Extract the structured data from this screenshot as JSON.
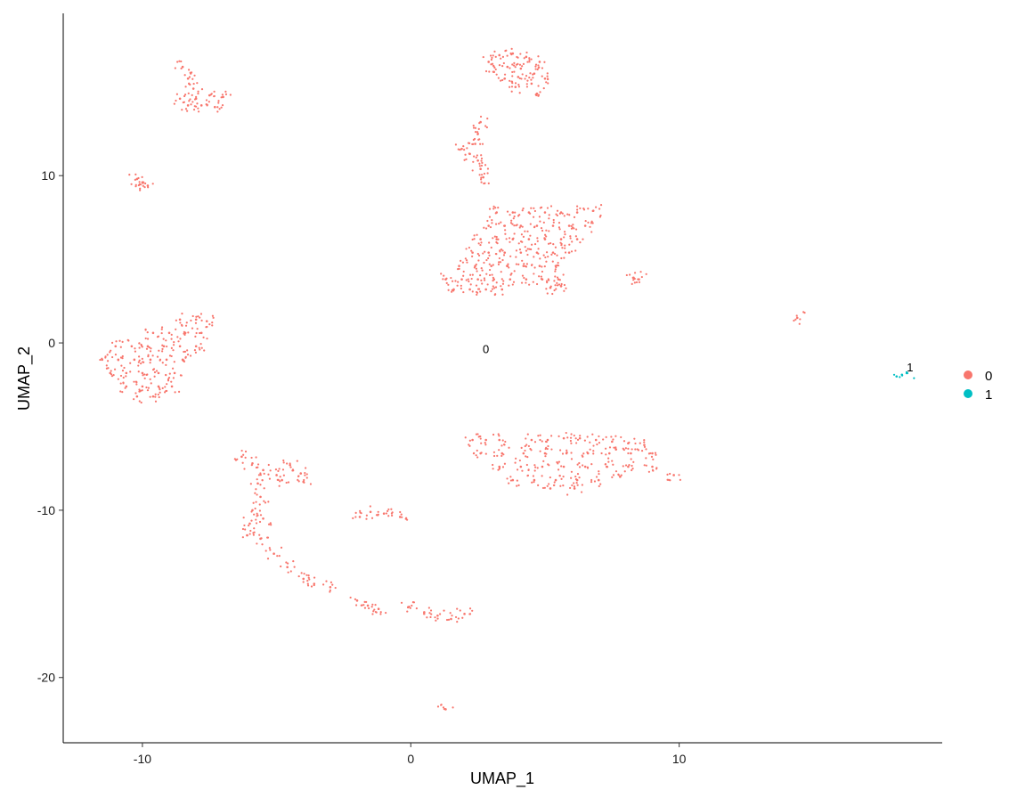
{
  "chart_data": {
    "type": "scatter",
    "title": "",
    "xlabel": "UMAP_1",
    "ylabel": "UMAP_2",
    "xlim": [
      -12.95,
      19.8
    ],
    "ylim": [
      -23.9,
      19.7
    ],
    "xticks": [
      -10,
      0,
      10
    ],
    "yticks": [
      -20,
      -10,
      0,
      10
    ],
    "grid": false,
    "legend_position": "right",
    "series": [
      {
        "name": "0",
        "color": "#F8766D",
        "label": {
          "text": "0",
          "x": 2.8,
          "y": -0.4
        },
        "points": [
          [
            2.9,
            16.8
          ],
          [
            3.3,
            17.2
          ],
          [
            3.8,
            17.3
          ],
          [
            4.3,
            17.1
          ],
          [
            4.8,
            16.8
          ],
          [
            3.1,
            16.2
          ],
          [
            3.6,
            16.5
          ],
          [
            4.1,
            16.4
          ],
          [
            4.6,
            16.1
          ],
          [
            5.0,
            15.8
          ],
          [
            3.5,
            15.8
          ],
          [
            4.0,
            15.9
          ],
          [
            4.5,
            15.5
          ],
          [
            3.9,
            15.3
          ],
          [
            4.7,
            14.9
          ],
          [
            -8.5,
            16.5
          ],
          [
            -8.3,
            15.8
          ],
          [
            -8.1,
            15.2
          ],
          [
            -8.6,
            14.6
          ],
          [
            -8.0,
            14.6
          ],
          [
            -7.5,
            14.8
          ],
          [
            -7.0,
            14.7
          ],
          [
            -7.8,
            14.2
          ],
          [
            -7.3,
            14.1
          ],
          [
            -8.3,
            14.2
          ],
          [
            -10.2,
            9.8
          ],
          [
            -10.0,
            9.6
          ],
          [
            -9.8,
            9.4
          ],
          [
            2.6,
            13.2
          ],
          [
            2.5,
            12.5
          ],
          [
            2.4,
            11.9
          ],
          [
            1.9,
            11.6
          ],
          [
            2.2,
            11.3
          ],
          [
            2.5,
            10.9
          ],
          [
            2.6,
            10.4
          ],
          [
            2.7,
            9.9
          ],
          [
            3.2,
            7.8
          ],
          [
            3.8,
            7.8
          ],
          [
            4.4,
            7.8
          ],
          [
            5.0,
            7.8
          ],
          [
            5.6,
            7.8
          ],
          [
            6.2,
            7.8
          ],
          [
            6.8,
            7.9
          ],
          [
            2.9,
            7.0
          ],
          [
            3.5,
            7.0
          ],
          [
            4.1,
            7.0
          ],
          [
            4.7,
            7.0
          ],
          [
            5.3,
            7.0
          ],
          [
            5.9,
            7.0
          ],
          [
            6.5,
            7.0
          ],
          [
            2.6,
            6.2
          ],
          [
            3.2,
            6.2
          ],
          [
            3.8,
            6.2
          ],
          [
            4.4,
            6.2
          ],
          [
            5.0,
            6.2
          ],
          [
            5.6,
            6.2
          ],
          [
            6.2,
            6.2
          ],
          [
            2.3,
            5.4
          ],
          [
            2.9,
            5.4
          ],
          [
            3.5,
            5.4
          ],
          [
            4.1,
            5.4
          ],
          [
            4.7,
            5.4
          ],
          [
            5.3,
            5.4
          ],
          [
            5.9,
            5.4
          ],
          [
            1.8,
            4.6
          ],
          [
            2.4,
            4.6
          ],
          [
            3.0,
            4.6
          ],
          [
            3.6,
            4.6
          ],
          [
            4.2,
            4.6
          ],
          [
            4.8,
            4.6
          ],
          [
            5.4,
            4.6
          ],
          [
            1.3,
            3.8
          ],
          [
            1.9,
            3.8
          ],
          [
            2.5,
            3.8
          ],
          [
            3.1,
            3.8
          ],
          [
            3.7,
            3.8
          ],
          [
            4.3,
            3.8
          ],
          [
            4.9,
            3.8
          ],
          [
            5.5,
            3.8
          ],
          [
            1.6,
            3.2
          ],
          [
            2.2,
            3.2
          ],
          [
            2.8,
            3.2
          ],
          [
            3.4,
            3.2
          ],
          [
            5.2,
            3.3
          ],
          [
            5.6,
            3.4
          ],
          [
            -8.6,
            1.4
          ],
          [
            -8.0,
            1.4
          ],
          [
            -7.6,
            1.3
          ],
          [
            -9.6,
            0.6
          ],
          [
            -9.0,
            0.6
          ],
          [
            -8.4,
            0.6
          ],
          [
            -7.8,
            0.6
          ],
          [
            -11.0,
            -0.2
          ],
          [
            -10.4,
            -0.2
          ],
          [
            -9.8,
            -0.2
          ],
          [
            -9.2,
            -0.2
          ],
          [
            -8.6,
            -0.2
          ],
          [
            -8.0,
            -0.2
          ],
          [
            -11.5,
            -1.0
          ],
          [
            -10.9,
            -1.0
          ],
          [
            -10.3,
            -1.0
          ],
          [
            -9.7,
            -1.0
          ],
          [
            -9.1,
            -1.0
          ],
          [
            -8.5,
            -1.0
          ],
          [
            -11.2,
            -1.8
          ],
          [
            -10.6,
            -1.8
          ],
          [
            -10.0,
            -1.8
          ],
          [
            -9.4,
            -1.8
          ],
          [
            -8.8,
            -1.8
          ],
          [
            -10.6,
            -2.6
          ],
          [
            -10.0,
            -2.6
          ],
          [
            -9.4,
            -2.6
          ],
          [
            -8.9,
            -2.6
          ],
          [
            -10.2,
            -3.2
          ],
          [
            -9.6,
            -3.2
          ],
          [
            2.3,
            -5.8
          ],
          [
            2.8,
            -5.8
          ],
          [
            3.3,
            -5.8
          ],
          [
            4.5,
            -5.8
          ],
          [
            5.1,
            -5.8
          ],
          [
            5.7,
            -5.7
          ],
          [
            6.3,
            -5.7
          ],
          [
            6.9,
            -5.8
          ],
          [
            7.5,
            -5.9
          ],
          [
            8.1,
            -6.0
          ],
          [
            8.7,
            -6.1
          ],
          [
            2.6,
            -6.6
          ],
          [
            3.4,
            -6.6
          ],
          [
            4.2,
            -6.6
          ],
          [
            5.0,
            -6.6
          ],
          [
            5.8,
            -6.6
          ],
          [
            6.6,
            -6.6
          ],
          [
            7.4,
            -6.6
          ],
          [
            8.2,
            -6.6
          ],
          [
            9.0,
            -6.6
          ],
          [
            3.3,
            -7.4
          ],
          [
            4.1,
            -7.4
          ],
          [
            4.9,
            -7.4
          ],
          [
            5.7,
            -7.4
          ],
          [
            6.5,
            -7.4
          ],
          [
            7.3,
            -7.4
          ],
          [
            8.1,
            -7.4
          ],
          [
            9.0,
            -7.4
          ],
          [
            9.8,
            -7.9
          ],
          [
            3.8,
            -8.2
          ],
          [
            4.6,
            -8.2
          ],
          [
            5.4,
            -8.2
          ],
          [
            6.2,
            -8.2
          ],
          [
            7.0,
            -8.2
          ],
          [
            7.8,
            -8.0
          ],
          [
            5.2,
            -8.7
          ],
          [
            6.1,
            -8.7
          ],
          [
            -6.3,
            -6.8
          ],
          [
            -5.9,
            -7.2
          ],
          [
            -5.5,
            -7.6
          ],
          [
            -5.0,
            -7.9
          ],
          [
            -4.5,
            -7.3
          ],
          [
            -4.1,
            -7.8
          ],
          [
            -4.0,
            -8.3
          ],
          [
            -4.8,
            -8.2
          ],
          [
            -5.7,
            -8.4
          ],
          [
            -5.6,
            -9.2
          ],
          [
            -5.9,
            -10.0
          ],
          [
            -6.0,
            -10.8
          ],
          [
            -6.1,
            -11.5
          ],
          [
            -5.6,
            -11.7
          ],
          [
            -5.5,
            -10.5
          ],
          [
            -5.1,
            -12.6
          ],
          [
            -4.6,
            -13.4
          ],
          [
            -4.0,
            -14.1
          ],
          [
            -3.6,
            -14.4
          ],
          [
            -3.0,
            -14.6
          ],
          [
            -1.9,
            -10.4
          ],
          [
            -1.5,
            -10.1
          ],
          [
            -1.0,
            -10.2
          ],
          [
            -0.4,
            -10.4
          ],
          [
            -2.0,
            -15.4
          ],
          [
            -1.6,
            -15.7
          ],
          [
            -1.2,
            -15.9
          ],
          [
            -0.1,
            -15.8
          ],
          [
            0.5,
            -16.1
          ],
          [
            1.0,
            -16.3
          ],
          [
            1.5,
            -16.5
          ],
          [
            2.0,
            -16.2
          ],
          [
            8.3,
            3.9
          ],
          [
            8.5,
            3.8
          ],
          [
            14.4,
            1.5
          ],
          [
            1.3,
            -21.9
          ]
        ]
      },
      {
        "name": "1",
        "color": "#00BFC4",
        "label": {
          "text": "1",
          "x": 18.6,
          "y": -1.5
        },
        "points": [
          [
            18.1,
            -2.0
          ],
          [
            18.3,
            -1.9
          ],
          [
            18.5,
            -1.8
          ]
        ]
      }
    ]
  }
}
